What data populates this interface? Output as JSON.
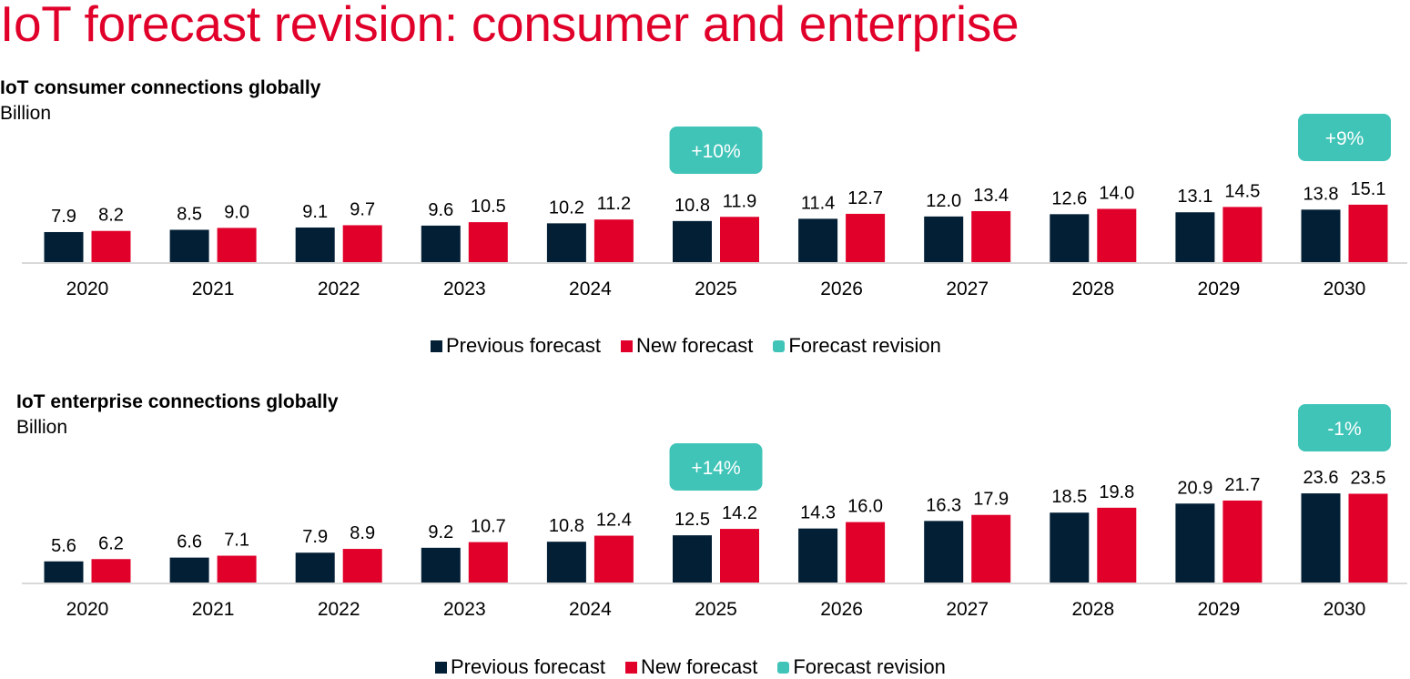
{
  "page": {
    "title": "IoT forecast revision: consumer and enterprise"
  },
  "colors": {
    "previous": "#021f35",
    "new": "#e0002a",
    "revision": "#40c4b8",
    "axis": "#d9d9d9",
    "title": "#e0002a"
  },
  "legend": {
    "previous": "Previous forecast",
    "new": "New forecast",
    "revision": "Forecast revision"
  },
  "chart_data": [
    {
      "type": "bar",
      "title": "IoT consumer connections globally",
      "ylabel": "Billion",
      "xlabel": "",
      "categories": [
        "2020",
        "2021",
        "2022",
        "2023",
        "2024",
        "2025",
        "2026",
        "2027",
        "2028",
        "2029",
        "2030"
      ],
      "series": [
        {
          "name": "Previous forecast",
          "values": [
            7.9,
            8.5,
            9.1,
            9.6,
            10.2,
            10.8,
            11.4,
            12.0,
            12.6,
            13.1,
            13.8
          ]
        },
        {
          "name": "New forecast",
          "values": [
            8.2,
            9.0,
            9.7,
            10.5,
            11.2,
            11.9,
            12.7,
            13.4,
            14.0,
            14.5,
            15.1
          ]
        }
      ],
      "value_labels": {
        "previous": [
          "7.9",
          "8.5",
          "9.1",
          "9.6",
          "10.2",
          "10.8",
          "11.4",
          "12.0",
          "12.6",
          "13.1",
          "13.8"
        ],
        "new": [
          "8.2",
          "9.0",
          "9.7",
          "10.5",
          "11.2",
          "11.9",
          "12.7",
          "13.4",
          "14.0",
          "14.5",
          "15.1"
        ]
      },
      "annotations": [
        {
          "category": "2025",
          "text": "+10%"
        },
        {
          "category": "2030",
          "text": "+9%"
        }
      ],
      "grid": false,
      "legend_position": "bottom-center"
    },
    {
      "type": "bar",
      "title": "IoT enterprise connections globally",
      "ylabel": "Billion",
      "xlabel": "",
      "categories": [
        "2020",
        "2021",
        "2022",
        "2023",
        "2024",
        "2025",
        "2026",
        "2027",
        "2028",
        "2029",
        "2030"
      ],
      "series": [
        {
          "name": "Previous forecast",
          "values": [
            5.6,
            6.6,
            7.9,
            9.2,
            10.8,
            12.5,
            14.3,
            16.3,
            18.5,
            20.9,
            23.6
          ]
        },
        {
          "name": "New forecast",
          "values": [
            6.2,
            7.1,
            8.9,
            10.7,
            12.4,
            14.2,
            16.0,
            17.9,
            19.8,
            21.7,
            23.5
          ]
        }
      ],
      "value_labels": {
        "previous": [
          "5.6",
          "6.6",
          "7.9",
          "9.2",
          "10.8",
          "12.5",
          "14.3",
          "16.3",
          "18.5",
          "20.9",
          "23.6"
        ],
        "new": [
          "6.2",
          "7.1",
          "8.9",
          "10.7",
          "12.4",
          "14.2",
          "16.0",
          "17.9",
          "19.8",
          "21.7",
          "23.5"
        ]
      },
      "annotations": [
        {
          "category": "2025",
          "text": "+14%"
        },
        {
          "category": "2030",
          "text": "-1%"
        }
      ],
      "grid": false,
      "legend_position": "bottom-center"
    }
  ]
}
